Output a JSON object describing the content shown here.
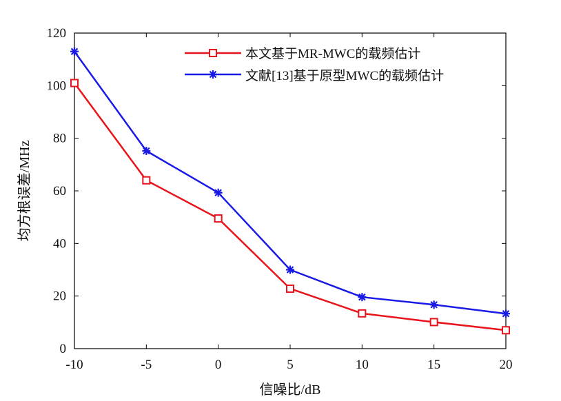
{
  "chart_data": {
    "type": "line",
    "title": "",
    "xlabel": "信噪比/dB",
    "ylabel": "均方根误差/MHz",
    "x": [
      -10,
      -5,
      0,
      5,
      10,
      15,
      20
    ],
    "xlim": [
      -10,
      20
    ],
    "ylim": [
      0,
      120
    ],
    "xticks": [
      "-10",
      "-5",
      "0",
      "5",
      "10",
      "15",
      "20"
    ],
    "yticks": [
      "0",
      "20",
      "40",
      "60",
      "80",
      "100",
      "120"
    ],
    "grid": false,
    "legend_position": "top-right",
    "series": [
      {
        "name": "本文基于MR-MWC的载频估计",
        "color": "#e8141b",
        "marker": "square",
        "values": [
          101,
          64,
          49.5,
          22.8,
          13.4,
          10.1,
          7.0
        ]
      },
      {
        "name": "文献[13]基于原型MWC的载频估计",
        "color": "#1a1ae6",
        "marker": "asterisk",
        "values": [
          113,
          75.2,
          59.3,
          30,
          19.6,
          16.7,
          13.3
        ]
      }
    ]
  }
}
